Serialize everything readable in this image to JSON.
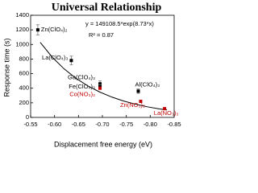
{
  "chart_data": {
    "type": "scatter",
    "title": "Universal Relationship",
    "annotations": [
      "y = 149108.5*exp(8.73*x)",
      "R² = 0.87"
    ],
    "x_label": "Displacement free energy (eV)",
    "y_label": "Response time (s)",
    "xlim": [
      -0.55,
      -0.85
    ],
    "xticks": [
      -0.55,
      {
        "value": -0.6,
        "label": "-0.60"
      },
      -0.65,
      {
        "value": -0.7,
        "label": "-0.70"
      },
      -0.75,
      {
        "value": -0.8,
        "label": "-0.80"
      },
      -0.85
    ],
    "ylim": [
      0,
      1400
    ],
    "yticks": [
      0,
      200,
      400,
      600,
      800,
      1000,
      1200,
      1400
    ],
    "series": [
      {
        "color": "#000000",
        "x": [
          -0.565,
          -0.635,
          -0.695,
          -0.695,
          -0.775
        ],
        "values": [
          1200,
          780,
          460,
          420,
          360
        ],
        "errors": [
          70,
          60,
          40,
          30,
          30
        ],
        "labels": [
          "Zn(ClO₄)₂",
          "La(ClO₄)₃",
          "Ga(ClO₄)₃",
          "Fe(ClO₄)₃",
          "Al(ClO₄)₃"
        ]
      },
      {
        "color": "#c00000",
        "x": [
          -0.695,
          -0.78,
          -0.83
        ],
        "values": [
          400,
          220,
          120
        ],
        "labels": [
          "Co(NO₃)₂",
          "Zn(NO₃)₂",
          "La(NO₃)₃"
        ]
      }
    ],
    "fit": {
      "color": "#000000",
      "x": [
        -0.57,
        -0.595,
        -0.62,
        -0.645,
        -0.67,
        -0.695,
        -0.72,
        -0.745,
        -0.77,
        -0.795,
        -0.82,
        -0.835
      ],
      "values": [
        1029,
        827,
        665,
        535,
        430,
        346,
        278,
        223,
        180,
        144,
        116,
        102
      ]
    }
  }
}
